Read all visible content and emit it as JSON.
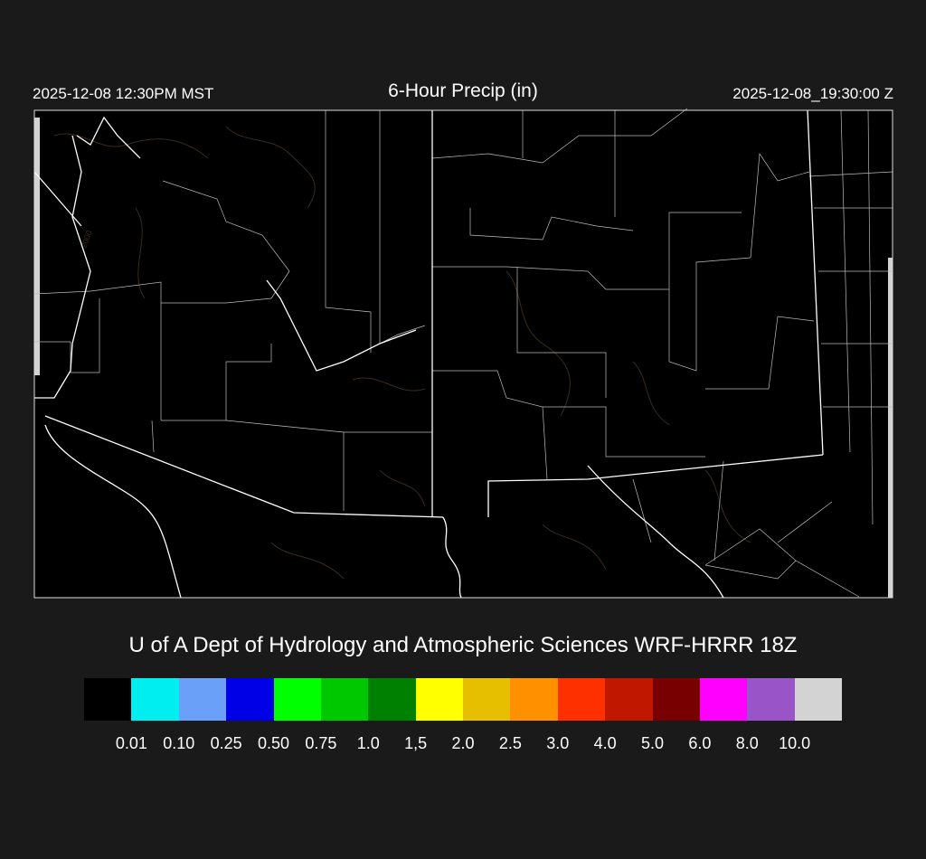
{
  "header": {
    "local_time": "2025-12-08 12:30PM MST",
    "title": "6-Hour Precip (in)",
    "valid_time": "2025-12-08_19:30:00 Z"
  },
  "map": {
    "background_color": "#000000",
    "state_border_color": "#ffffff",
    "county_border_color": "#bbbbbb",
    "terrain_contour_color": "#3a2a20",
    "contour_label": "2000"
  },
  "credit": "U of A Dept of Hydrology and Atmospheric Sciences WRF-HRRR 18Z",
  "legend": {
    "colors": [
      "#000000",
      "#00eef0",
      "#6aa0f8",
      "#0000e6",
      "#00ff00",
      "#00c800",
      "#008000",
      "#ffff00",
      "#e6c000",
      "#ff9000",
      "#ff3000",
      "#c01800",
      "#780000",
      "#ff00ff",
      "#9955c8",
      "#d3d3d3"
    ],
    "labels": [
      "0.01",
      "0.10",
      "0.25",
      "0.50",
      "0.75",
      "1.0",
      "1,5",
      "2.0",
      "2.5",
      "3.0",
      "4.0",
      "5.0",
      "6.0",
      "8.0",
      "10.0"
    ]
  }
}
